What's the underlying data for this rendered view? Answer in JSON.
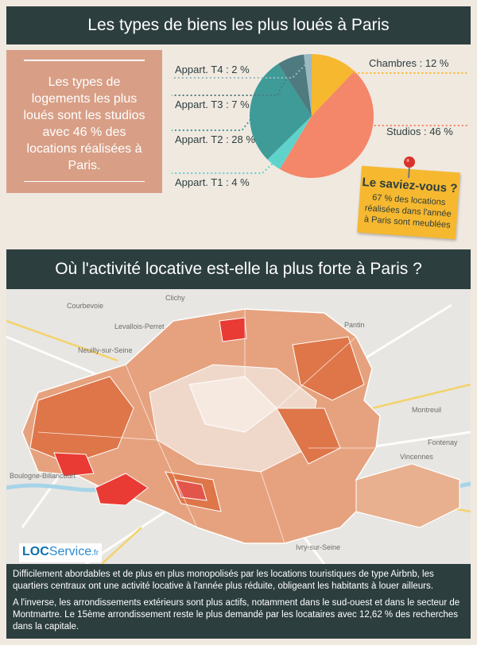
{
  "header": {
    "title": "Les types de biens les plus loués à Paris"
  },
  "intro": {
    "text": "Les types de logements les plus loués sont les studios avec 46 % des locations réalisées à Paris."
  },
  "chart_data": {
    "type": "pie",
    "categories": [
      "Chambres",
      "Studios",
      "Appart. T1",
      "Appart. T2",
      "Appart. T3",
      "Appart. T4"
    ],
    "values": [
      12,
      46,
      4,
      28,
      7,
      2
    ],
    "labels": [
      "Chambres : 12 %",
      "Studios : 46 %",
      "Appart. T1 : 4 %",
      "Appart. T2 : 28 %",
      "Appart. T3 : 7 %",
      "Appart. T4 : 2 %"
    ],
    "colors": [
      "#f6b82f",
      "#f48769",
      "#5fd3cb",
      "#3e9b98",
      "#4e7a80",
      "#9ab9c0"
    ]
  },
  "tip": {
    "title": "Le saviez-vous ?",
    "text": "67 % des locations réalisées dans l'année à Paris sont meublées"
  },
  "section2": {
    "title": "Où l'activité locative est-elle la plus forte à Paris ?"
  },
  "map": {
    "places": [
      "Clichy",
      "Courbevoie",
      "Levallois-Perret",
      "Neuilly-sur-Seine",
      "Pantin",
      "Montreuil",
      "Boulogne-Billancourt",
      "Ivry-sur-Seine",
      "Fontenay",
      "Vincennes"
    ],
    "colors": {
      "light": "#efd8ca",
      "mid": "#e6a27e",
      "strong": "#de7649",
      "hot": "#e93a33"
    }
  },
  "logo": {
    "loc": "LOC",
    "service": "Service",
    "tld": ".fr"
  },
  "footer": {
    "p1": "Difficilement abordables et de plus en plus monopolisés par les locations touristiques de type Airbnb, les quartiers centraux ont une activité locative à l'année plus réduite, obligeant les habitants à louer ailleurs.",
    "p2": "A l'inverse, les arrondissements extérieurs sont plus actifs, notamment dans le sud-ouest et dans le secteur de Montmartre. Le 15ème arrondissement reste le plus demandé par les locataires avec 12,62 % des recherches dans la capitale."
  }
}
